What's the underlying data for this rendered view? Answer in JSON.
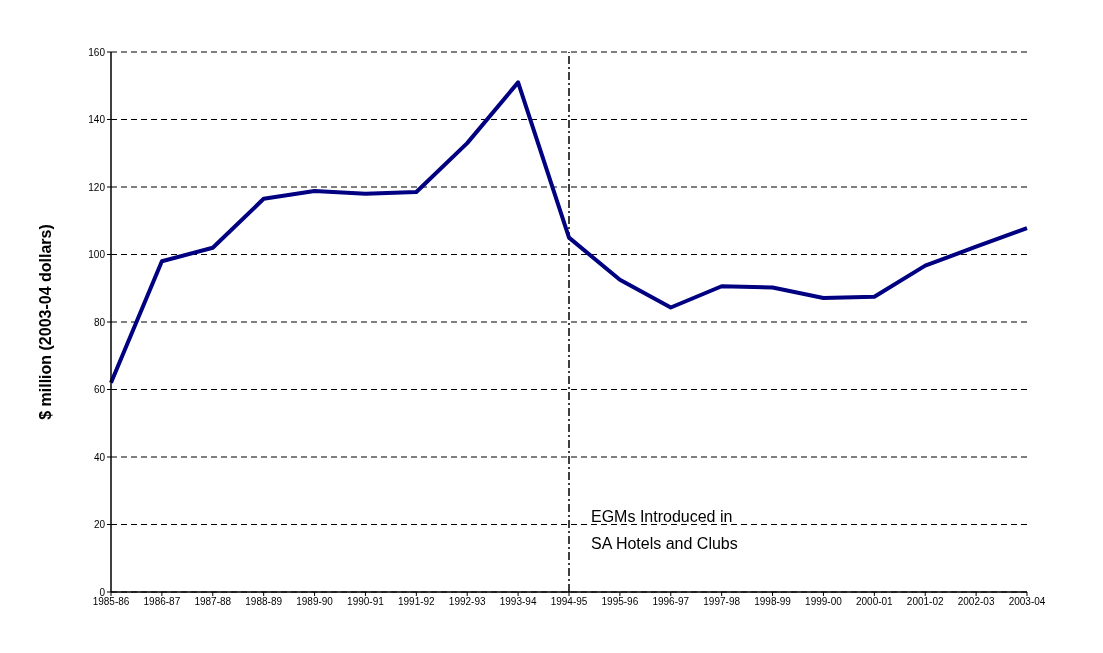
{
  "chart_data": {
    "type": "line",
    "ylabel": "$ million (2003-04 dollars)",
    "categories": [
      "1985-86",
      "1986-87",
      "1987-88",
      "1988-89",
      "1989-90",
      "1990-91",
      "1991-92",
      "1992-93",
      "1993-94",
      "1994-95",
      "1995-96",
      "1996-97",
      "1997-98",
      "1998-99",
      "1999-00",
      "2000-01",
      "2001-02",
      "2002-03",
      "2003-04"
    ],
    "series": [
      {
        "color": "#000080",
        "values": [
          62,
          98,
          102,
          116.5,
          118.8,
          118,
          118.5,
          133,
          151,
          105,
          92.5,
          84.3,
          90.6,
          90.2,
          87.1,
          87.5,
          96.7,
          102.3,
          107.8
        ]
      }
    ],
    "ylim": [
      0,
      160
    ],
    "yticks": [
      0,
      20,
      40,
      60,
      80,
      100,
      120,
      140,
      160
    ],
    "grid": "y",
    "marker": "none",
    "line_style": "solid",
    "legend": false,
    "ref_lines": [
      {
        "axis": "x",
        "value": "1994-95",
        "label": "EGMs Introduced in\nSA Hotels and Clubs",
        "color": "#000000",
        "line_style": "dashdot"
      }
    ]
  }
}
